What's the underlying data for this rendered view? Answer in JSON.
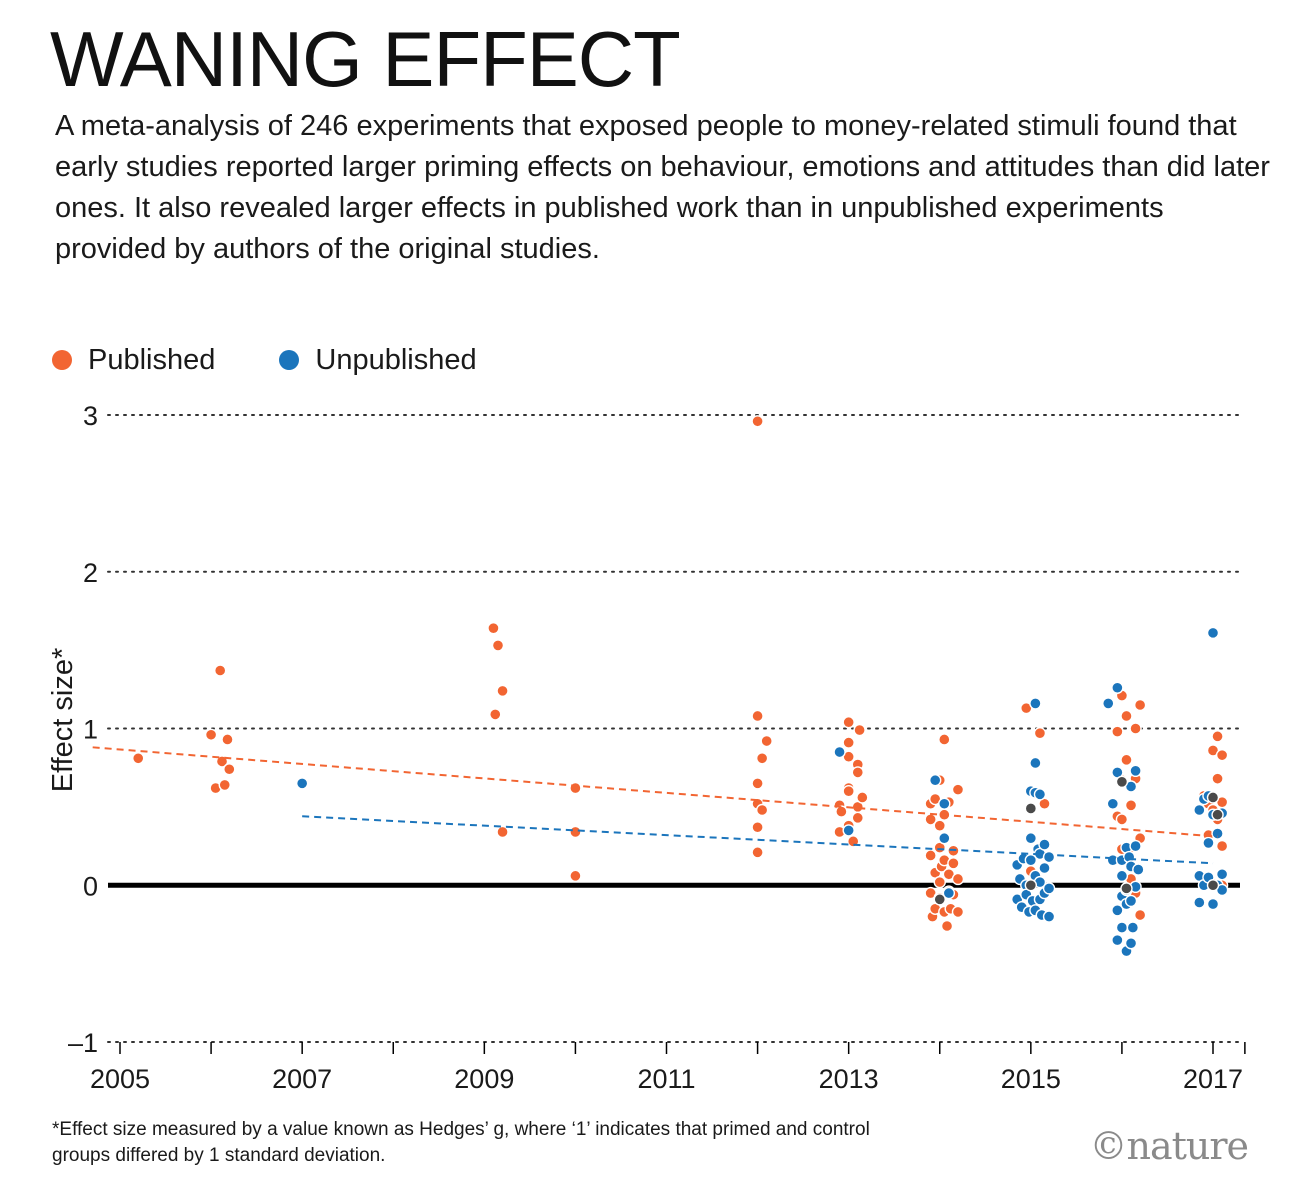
{
  "title": "WANING EFFECT",
  "subtitle": "A meta-analysis of 246 experiments that exposed people to money-related stimuli found that early studies reported larger priming effects on behaviour, emotions and attitudes than did later ones. It also revealed larger effects in published work than in unpublished experiments provided by authors of the original studies.",
  "legend": [
    {
      "label": "Published",
      "color": "#f26532"
    },
    {
      "label": "Unpublished",
      "color": "#1b75bc"
    }
  ],
  "footnote": "*Effect size measured by a value known as Hedges’ g, where ‘1’ indicates that primed and control groups differed by 1 standard deviation.",
  "credit": "©nature",
  "chart_data": {
    "type": "scatter",
    "title": "WANING EFFECT",
    "xlabel": "",
    "ylabel": "Effect size*",
    "xlim": [
      2004.5,
      2017.6
    ],
    "ylim": [
      -1,
      3
    ],
    "x_ticks": [
      "2005",
      "2007",
      "2009",
      "2011",
      "2013",
      "2015",
      "2017"
    ],
    "y_ticks": [
      "3",
      "2",
      "1",
      "0",
      "–1"
    ],
    "grid": "dotted horizontal at 1, 2, 3",
    "zero_line": true,
    "legend_position": "top-left",
    "colors": {
      "published": "#f26532",
      "unpublished": "#1b75bc",
      "overlap": "#4a4a4a"
    },
    "series": [
      {
        "name": "Published",
        "color": "#f26532",
        "points": [
          [
            2005.2,
            0.81
          ],
          [
            2006.0,
            0.96
          ],
          [
            2006.05,
            0.62
          ],
          [
            2006.1,
            1.37
          ],
          [
            2006.12,
            0.79
          ],
          [
            2006.15,
            0.64
          ],
          [
            2006.18,
            0.93
          ],
          [
            2006.2,
            0.74
          ],
          [
            2009.1,
            1.64
          ],
          [
            2009.12,
            1.09
          ],
          [
            2009.15,
            1.53
          ],
          [
            2009.2,
            1.24
          ],
          [
            2009.2,
            0.34
          ],
          [
            2010.0,
            0.62
          ],
          [
            2010.0,
            0.34
          ],
          [
            2010.0,
            0.06
          ],
          [
            2012.0,
            2.96
          ],
          [
            2012.0,
            1.08
          ],
          [
            2012.0,
            0.65
          ],
          [
            2012.0,
            0.52
          ],
          [
            2012.0,
            0.37
          ],
          [
            2012.0,
            0.21
          ],
          [
            2012.05,
            0.81
          ],
          [
            2012.05,
            0.48
          ],
          [
            2012.1,
            0.92
          ],
          [
            2012.9,
            0.51
          ],
          [
            2012.9,
            0.34
          ],
          [
            2012.92,
            0.47
          ],
          [
            2013.0,
            1.04
          ],
          [
            2013.0,
            0.91
          ],
          [
            2013.0,
            0.82
          ],
          [
            2013.0,
            0.62
          ],
          [
            2013.0,
            0.6
          ],
          [
            2013.0,
            0.38
          ],
          [
            2013.05,
            0.28
          ],
          [
            2013.1,
            0.77
          ],
          [
            2013.1,
            0.72
          ],
          [
            2013.1,
            0.5
          ],
          [
            2013.1,
            0.43
          ],
          [
            2013.12,
            0.99
          ],
          [
            2013.15,
            0.56
          ],
          [
            2013.9,
            0.52
          ],
          [
            2013.9,
            0.42
          ],
          [
            2013.9,
            0.19
          ],
          [
            2013.9,
            -0.05
          ],
          [
            2013.92,
            -0.2
          ],
          [
            2013.95,
            0.55
          ],
          [
            2013.95,
            0.08
          ],
          [
            2013.95,
            -0.15
          ],
          [
            2014.0,
            0.67
          ],
          [
            2014.0,
            0.38
          ],
          [
            2014.0,
            0.24
          ],
          [
            2014.0,
            0.02
          ],
          [
            2014.0,
            -0.08
          ],
          [
            2014.02,
            0.12
          ],
          [
            2014.05,
            0.93
          ],
          [
            2014.05,
            0.45
          ],
          [
            2014.05,
            0.16
          ],
          [
            2014.05,
            -0.17
          ],
          [
            2014.08,
            -0.26
          ],
          [
            2014.1,
            0.53
          ],
          [
            2014.1,
            0.07
          ],
          [
            2014.1,
            -0.04
          ],
          [
            2014.12,
            -0.15
          ],
          [
            2014.15,
            0.22
          ],
          [
            2014.15,
            0.14
          ],
          [
            2014.15,
            -0.06
          ],
          [
            2014.2,
            0.61
          ],
          [
            2014.2,
            0.04
          ],
          [
            2014.2,
            -0.17
          ],
          [
            2014.95,
            1.13
          ],
          [
            2015.0,
            0.09
          ],
          [
            2015.1,
            0.97
          ],
          [
            2015.15,
            0.52
          ],
          [
            2015.95,
            0.98
          ],
          [
            2015.95,
            0.44
          ],
          [
            2016.0,
            1.21
          ],
          [
            2016.0,
            0.67
          ],
          [
            2016.0,
            0.42
          ],
          [
            2016.0,
            0.23
          ],
          [
            2016.05,
            1.08
          ],
          [
            2016.05,
            0.8
          ],
          [
            2016.1,
            0.51
          ],
          [
            2016.1,
            0.24
          ],
          [
            2016.1,
            0.04
          ],
          [
            2016.15,
            1.0
          ],
          [
            2016.15,
            0.68
          ],
          [
            2016.15,
            -0.05
          ],
          [
            2016.2,
            1.15
          ],
          [
            2016.2,
            0.3
          ],
          [
            2016.2,
            -0.19
          ],
          [
            2016.9,
            0.57
          ],
          [
            2016.95,
            0.52
          ],
          [
            2016.95,
            0.32
          ],
          [
            2017.0,
            0.86
          ],
          [
            2017.0,
            0.48
          ],
          [
            2017.0,
            0.01
          ],
          [
            2017.05,
            0.95
          ],
          [
            2017.05,
            0.68
          ],
          [
            2017.05,
            0.42
          ],
          [
            2017.1,
            0.83
          ],
          [
            2017.1,
            0.53
          ],
          [
            2017.1,
            0.25
          ],
          [
            2017.1,
            0.0
          ]
        ],
        "trend": [
          [
            2004.7,
            0.88
          ],
          [
            2017.05,
            0.31
          ]
        ]
      },
      {
        "name": "Unpublished",
        "color": "#1b75bc",
        "points": [
          [
            2007.0,
            0.65
          ],
          [
            2012.9,
            0.85
          ],
          [
            2013.0,
            0.35
          ],
          [
            2013.95,
            0.67
          ],
          [
            2014.05,
            0.52
          ],
          [
            2014.05,
            0.3
          ],
          [
            2014.1,
            -0.05
          ],
          [
            2014.85,
            0.13
          ],
          [
            2014.85,
            -0.09
          ],
          [
            2014.88,
            0.04
          ],
          [
            2014.9,
            -0.14
          ],
          [
            2014.92,
            0.17
          ],
          [
            2014.95,
            0.0
          ],
          [
            2014.95,
            -0.06
          ],
          [
            2014.98,
            -0.17
          ],
          [
            2015.0,
            0.6
          ],
          [
            2015.0,
            0.3
          ],
          [
            2015.0,
            0.16
          ],
          [
            2015.02,
            -0.1
          ],
          [
            2015.05,
            1.16
          ],
          [
            2015.05,
            0.78
          ],
          [
            2015.05,
            0.59
          ],
          [
            2015.05,
            0.06
          ],
          [
            2015.05,
            -0.16
          ],
          [
            2015.08,
            0.23
          ],
          [
            2015.1,
            0.58
          ],
          [
            2015.1,
            0.2
          ],
          [
            2015.1,
            0.02
          ],
          [
            2015.1,
            -0.09
          ],
          [
            2015.12,
            -0.19
          ],
          [
            2015.15,
            0.26
          ],
          [
            2015.15,
            0.11
          ],
          [
            2015.15,
            -0.05
          ],
          [
            2015.2,
            0.18
          ],
          [
            2015.2,
            -0.02
          ],
          [
            2015.2,
            -0.2
          ],
          [
            2015.85,
            1.16
          ],
          [
            2015.9,
            0.52
          ],
          [
            2015.9,
            0.16
          ],
          [
            2015.95,
            1.26
          ],
          [
            2015.95,
            0.72
          ],
          [
            2015.95,
            -0.16
          ],
          [
            2015.95,
            -0.35
          ],
          [
            2016.0,
            0.16
          ],
          [
            2016.0,
            0.06
          ],
          [
            2016.0,
            -0.07
          ],
          [
            2016.0,
            -0.27
          ],
          [
            2016.05,
            0.24
          ],
          [
            2016.05,
            -0.03
          ],
          [
            2016.05,
            -0.12
          ],
          [
            2016.05,
            -0.42
          ],
          [
            2016.08,
            0.18
          ],
          [
            2016.1,
            0.63
          ],
          [
            2016.1,
            0.12
          ],
          [
            2016.1,
            -0.1
          ],
          [
            2016.1,
            -0.37
          ],
          [
            2016.12,
            -0.27
          ],
          [
            2016.15,
            0.73
          ],
          [
            2016.15,
            0.25
          ],
          [
            2016.15,
            -0.01
          ],
          [
            2016.18,
            0.1
          ],
          [
            2016.85,
            0.48
          ],
          [
            2016.85,
            0.06
          ],
          [
            2016.85,
            -0.11
          ],
          [
            2016.9,
            0.55
          ],
          [
            2016.9,
            0.0
          ],
          [
            2016.95,
            0.57
          ],
          [
            2016.95,
            0.27
          ],
          [
            2016.95,
            0.05
          ],
          [
            2017.0,
            1.61
          ],
          [
            2017.0,
            0.45
          ],
          [
            2017.0,
            -0.12
          ],
          [
            2017.05,
            0.33
          ],
          [
            2017.05,
            0.0
          ],
          [
            2017.1,
            0.46
          ],
          [
            2017.1,
            0.07
          ],
          [
            2017.1,
            -0.03
          ]
        ],
        "trend": [
          [
            2007.0,
            0.44
          ],
          [
            2017.0,
            0.14
          ]
        ]
      }
    ],
    "overlap_points": [
      [
        2014.0,
        -0.09
      ],
      [
        2015.0,
        0.49
      ],
      [
        2015.0,
        0.0
      ],
      [
        2016.0,
        0.66
      ],
      [
        2016.05,
        -0.02
      ],
      [
        2017.0,
        0.56
      ],
      [
        2017.05,
        0.45
      ],
      [
        2017.0,
        0.0
      ]
    ]
  }
}
